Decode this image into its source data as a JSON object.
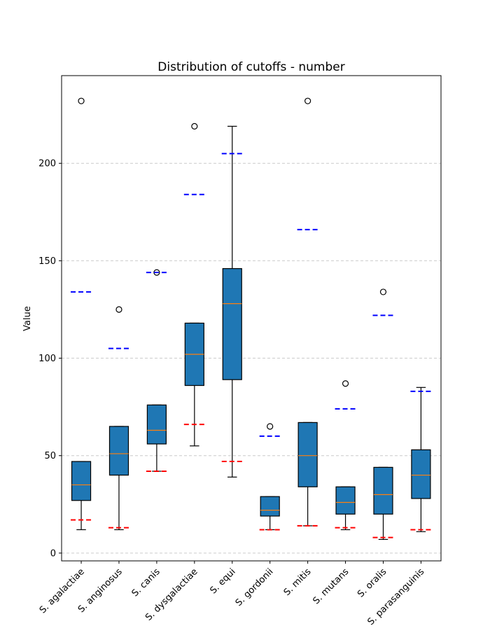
{
  "chart_data": {
    "type": "box",
    "title": "Distribution of cutoffs - number",
    "xlabel": "",
    "ylabel": "Value",
    "ylim": [
      -4,
      245
    ],
    "yticks": [
      0,
      50,
      100,
      150,
      200
    ],
    "grid": "y-dashed",
    "categories": [
      "S. agalactiae",
      "S. anginosus",
      "S. canis",
      "S. dysgalactiae",
      "S. equi",
      "S. gordonii",
      "S. mitis",
      "S. mutans",
      "S. oralis",
      "S. parasanguinis"
    ],
    "boxes": [
      {
        "whisker_low": 12,
        "q1": 27,
        "median": 35,
        "q3": 47,
        "whisker_high": 47,
        "fliers": [
          232
        ]
      },
      {
        "whisker_low": 12,
        "q1": 40,
        "median": 51,
        "q3": 65,
        "whisker_high": 65,
        "fliers": [
          125
        ]
      },
      {
        "whisker_low": 42,
        "q1": 56,
        "median": 63,
        "q3": 76,
        "whisker_high": 76,
        "fliers": [
          144
        ]
      },
      {
        "whisker_low": 55,
        "q1": 86,
        "median": 102,
        "q3": 118,
        "whisker_high": 118,
        "fliers": [
          219
        ]
      },
      {
        "whisker_low": 39,
        "q1": 89,
        "median": 128,
        "q3": 146,
        "whisker_high": 219,
        "fliers": []
      },
      {
        "whisker_low": 12,
        "q1": 19,
        "median": 22,
        "q3": 29,
        "whisker_high": 29,
        "fliers": [
          65
        ]
      },
      {
        "whisker_low": 14,
        "q1": 34,
        "median": 50,
        "q3": 67,
        "whisker_high": 67,
        "fliers": [
          232
        ]
      },
      {
        "whisker_low": 12,
        "q1": 20,
        "median": 26,
        "q3": 34,
        "whisker_high": 34,
        "fliers": [
          87
        ]
      },
      {
        "whisker_low": 7,
        "q1": 20,
        "median": 30,
        "q3": 44,
        "whisker_high": 44,
        "fliers": [
          134
        ]
      },
      {
        "whisker_low": 11,
        "q1": 28,
        "median": 40,
        "q3": 53,
        "whisker_high": 85,
        "fliers": []
      }
    ],
    "lower_markers": [
      17,
      13,
      42,
      66,
      47,
      12,
      14,
      13,
      8,
      12
    ],
    "upper_markers": [
      134,
      105,
      144,
      184,
      205,
      60,
      166,
      74,
      122,
      83
    ],
    "colors": {
      "box_fill": "#1f77b4",
      "median": "#ff7f0e",
      "lower_marker": "#ff0000",
      "upper_marker": "#0000ff",
      "grid": "#cccccc",
      "outline": "#000000"
    }
  }
}
